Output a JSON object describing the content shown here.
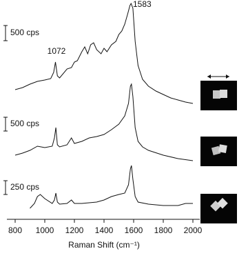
{
  "chart_data": {
    "type": "line",
    "x_label": "Raman Shift (cm⁻¹)",
    "xlim": [
      800,
      2000
    ],
    "xticks": [
      800,
      1000,
      1200,
      1400,
      1600,
      1800,
      2000
    ],
    "ylim": [
      0,
      318
    ],
    "color": "#111111",
    "annotations": [
      "1583",
      "1072"
    ],
    "series": [
      {
        "x": [
          800,
          850,
          900,
          950,
          1000,
          1040,
          1060,
          1072,
          1085,
          1100,
          1150,
          1180,
          1200,
          1220,
          1250,
          1270,
          1290,
          1310,
          1330,
          1350,
          1380,
          1400,
          1420,
          1450,
          1480,
          1500,
          1520,
          1540,
          1560,
          1575,
          1583,
          1595,
          1610,
          1630,
          1660,
          1700,
          1750,
          1800,
          1850,
          1900,
          1950,
          2000
        ],
        "values": [
          188,
          191,
          196,
          200,
          202,
          204,
          213,
          228,
          208,
          205,
          218,
          220,
          228,
          230,
          243,
          250,
          240,
          253,
          256,
          246,
          240,
          248,
          243,
          253,
          258,
          268,
          273,
          283,
          298,
          310,
          313,
          306,
          258,
          223,
          203,
          193,
          186,
          181,
          176,
          173,
          170,
          168
        ]
      },
      {
        "x": [
          800,
          850,
          900,
          950,
          1000,
          1050,
          1065,
          1075,
          1085,
          1100,
          1150,
          1180,
          1200,
          1250,
          1300,
          1350,
          1400,
          1450,
          1500,
          1540,
          1565,
          1578,
          1585,
          1595,
          1610,
          1630,
          1660,
          1700,
          1800,
          1900,
          2000
        ],
        "values": [
          93,
          96,
          100,
          106,
          104,
          106,
          118,
          133,
          108,
          105,
          108,
          118,
          110,
          113,
          118,
          120,
          123,
          130,
          138,
          150,
          168,
          193,
          196,
          178,
          133,
          113,
          105,
          100,
          93,
          88,
          85
        ]
      },
      {
        "x": [
          900,
          930,
          950,
          970,
          1000,
          1050,
          1065,
          1075,
          1085,
          1100,
          1150,
          1180,
          1200,
          1250,
          1300,
          1350,
          1400,
          1450,
          1500,
          1540,
          1565,
          1578,
          1585,
          1595,
          1610,
          1630,
          1700,
          1800,
          1900,
          1950,
          2000
        ],
        "values": [
          16,
          23,
          33,
          36,
          30,
          23,
          28,
          38,
          25,
          22,
          23,
          28,
          23,
          23,
          24,
          25,
          28,
          33,
          36,
          38,
          50,
          73,
          78,
          58,
          33,
          25,
          22,
          20,
          20,
          23,
          23
        ]
      }
    ],
    "scale_bars": [
      {
        "label": "500 cps",
        "bottom": 259,
        "length": 22
      },
      {
        "label": "500 cps",
        "bottom": 128,
        "length": 20
      },
      {
        "label": "250 cps",
        "bottom": 36,
        "length": 20
      }
    ]
  }
}
